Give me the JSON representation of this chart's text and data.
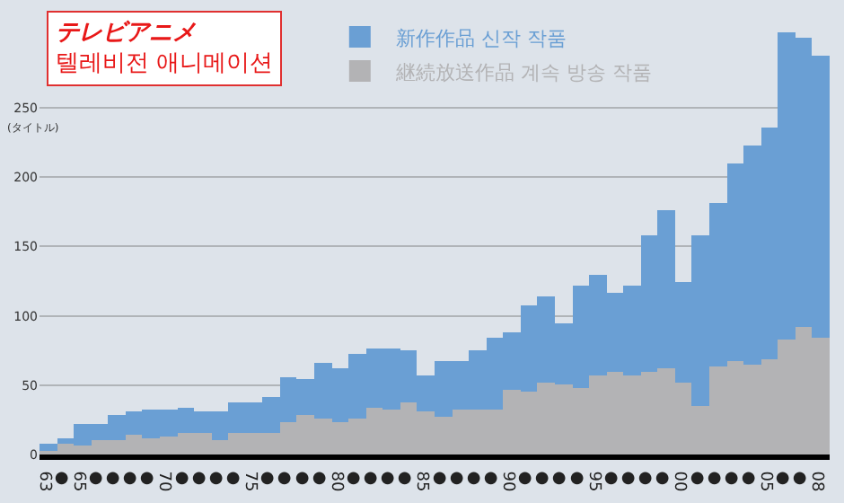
{
  "chart_data": {
    "type": "bar",
    "stacked": true,
    "title": "テレビアニメ\n텔레비전 애니메이션",
    "ylabel": "(タイトル)",
    "categories": [
      "63",
      "●",
      "65",
      "●",
      "●",
      "●",
      "●",
      "70",
      "●",
      "●",
      "●",
      "●",
      "75",
      "●",
      "●",
      "●",
      "●",
      "80",
      "●",
      "●",
      "●",
      "●",
      "85",
      "●",
      "●",
      "●",
      "●",
      "90",
      "●",
      "●",
      "●",
      "●",
      "95",
      "●",
      "●",
      "●",
      "●",
      "00",
      "●",
      "●",
      "●",
      "●",
      "05",
      "●",
      "●",
      "08"
    ],
    "series": [
      {
        "name": "継続放送作品 계속 방송 작품",
        "color": "#b3b3b5",
        "values": [
          2,
          8,
          6,
          11,
          10,
          14,
          12,
          13,
          16,
          15,
          10,
          15,
          15,
          16,
          23,
          28,
          26,
          23,
          26,
          34,
          33,
          38,
          31,
          27,
          33,
          32,
          33,
          47,
          45,
          52,
          51,
          48,
          57,
          59,
          57,
          59,
          62,
          52,
          35,
          64,
          68,
          65,
          69,
          83,
          92,
          84
        ]
      },
      {
        "name": "新作作品 신작 작품",
        "color": "#6a9fd4",
        "values": [
          6,
          4,
          16,
          11,
          18,
          17,
          20,
          19,
          18,
          16,
          21,
          22,
          22,
          25,
          33,
          26,
          40,
          39,
          46,
          42,
          44,
          37,
          26,
          40,
          34,
          43,
          51,
          41,
          63,
          62,
          43,
          74,
          73,
          58,
          65,
          99,
          114,
          73,
          123,
          118,
          142,
          158,
          167,
          222,
          208,
          204
        ]
      }
    ],
    "ylim": [
      0,
      320
    ],
    "yticks": [
      0,
      50,
      100,
      150,
      200,
      250
    ],
    "grid": "y",
    "legend": "top"
  }
}
